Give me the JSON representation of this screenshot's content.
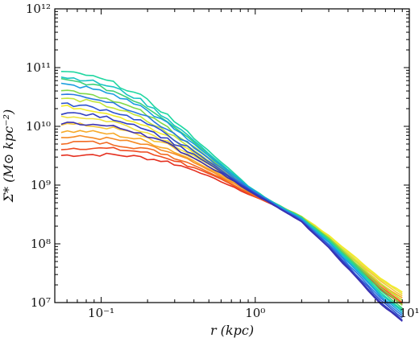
{
  "chart_data": {
    "type": "line",
    "xlabel": "r (kpc)",
    "ylabel": "Σ* (M⊙ kpc⁻²)",
    "xscale": "log",
    "yscale": "log",
    "xlim": [
      0.05,
      10
    ],
    "ylim": [
      10000000,
      1000000000000
    ],
    "grid": false,
    "legend": "none",
    "x_ticks": [
      {
        "value": 0.1,
        "label": "10⁻¹"
      },
      {
        "value": 1,
        "label": "10⁰"
      },
      {
        "value": 10,
        "label": "10¹"
      }
    ],
    "y_ticks": [
      {
        "value": 10000000,
        "label": "10⁷"
      },
      {
        "value": 100000000,
        "label": "10⁸"
      },
      {
        "value": 1000000000,
        "label": "10⁹"
      },
      {
        "value": 10000000000,
        "label": "10¹⁰"
      },
      {
        "value": 100000000000,
        "label": "10¹¹"
      },
      {
        "value": 1000000000000,
        "label": "10¹²"
      }
    ],
    "x": [
      0.055,
      0.08,
      0.12,
      0.18,
      0.27,
      0.4,
      0.6,
      0.9,
      1.3,
      2.0,
      3.0,
      4.5,
      6.5,
      9.0
    ],
    "series": [
      {
        "color": "#e53020",
        "values": [
          3200000000,
          3300000000,
          3300000000,
          3000000000,
          2500000000,
          1800000000,
          1150000000,
          700000000,
          470000000,
          260000000,
          110000000,
          40000000,
          17000000,
          9000000
        ]
      },
      {
        "color": "#ee4a20",
        "values": [
          4200000000,
          4300000000,
          4100000000,
          3700000000,
          2900000000,
          2000000000,
          1250000000,
          720000000,
          470000000,
          265000000,
          112000000,
          42000000,
          18000000,
          9500000
        ]
      },
      {
        "color": "#f26a22",
        "values": [
          5300000000,
          5400000000,
          5000000000,
          4300000000,
          3300000000,
          2200000000,
          1320000000,
          750000000,
          480000000,
          270000000,
          116000000,
          44000000,
          19000000,
          10000000
        ]
      },
      {
        "color": "#f58a25",
        "values": [
          6500000000,
          6600000000,
          6000000000,
          5000000000,
          3700000000,
          2400000000,
          1400000000,
          780000000,
          485000000,
          275000000,
          120000000,
          46000000,
          20000000,
          11000000
        ]
      },
      {
        "color": "#f7a928",
        "values": [
          8200000000,
          8200000000,
          7300000000,
          5900000000,
          4200000000,
          2600000000,
          1480000000,
          800000000,
          490000000,
          280000000,
          125000000,
          49000000,
          21000000,
          12000000
        ]
      },
      {
        "color": "#f4c73a",
        "values": [
          11000000000,
          10500000000,
          9200000000,
          7100000000,
          4800000000,
          2850000000,
          1560000000,
          820000000,
          495000000,
          285000000,
          130000000,
          52000000,
          23000000,
          13000000
        ]
      },
      {
        "color": "#eee142",
        "values": [
          15000000000,
          14000000000,
          12000000000,
          8700000000,
          5600000000,
          3150000000,
          1650000000,
          840000000,
          500000000,
          290000000,
          135000000,
          55000000,
          25000000,
          14000000
        ]
      },
      {
        "color": "#f2ec2a",
        "values": [
          22000000000,
          20000000000,
          16000000000,
          11000000000,
          6600000000,
          3500000000,
          1750000000,
          860000000,
          500000000,
          295000000,
          140000000,
          58000000,
          26000000,
          15000000
        ]
      },
      {
        "color": "#c4e53a",
        "values": [
          30000000000,
          27000000000,
          21000000000,
          14000000000,
          7900000000,
          3900000000,
          1850000000,
          880000000,
          505000000,
          290000000,
          130000000,
          50000000,
          21000000,
          11000000
        ]
      },
      {
        "color": "#7fd84a",
        "values": [
          42000000000,
          37000000000,
          28000000000,
          18000000000,
          9600000000,
          4500000000,
          2000000000,
          900000000,
          510000000,
          285000000,
          125000000,
          46000000,
          18000000,
          9000000
        ]
      },
      {
        "color": "#3ed17a",
        "values": [
          62000000000,
          54000000000,
          40000000000,
          25000000000,
          12500000000,
          5400000000,
          2250000000,
          930000000,
          510000000,
          280000000,
          120000000,
          43000000,
          16000000,
          8000000
        ]
      },
      {
        "color": "#1ed7a0",
        "values": [
          85000000000,
          75000000000,
          55000000000,
          33000000000,
          15500000000,
          6300000000,
          2500000000,
          960000000,
          510000000,
          275000000,
          115000000,
          40000000,
          15000000,
          7500000
        ]
      },
      {
        "color": "#1ac4c4",
        "values": [
          70000000000,
          62000000000,
          46000000000,
          28000000000,
          13500000000,
          5700000000,
          2300000000,
          940000000,
          505000000,
          270000000,
          110000000,
          38000000,
          14000000,
          7000000
        ]
      },
      {
        "color": "#1a9ee0",
        "values": [
          52000000000,
          46000000000,
          35000000000,
          22000000000,
          11000000000,
          5000000000,
          2150000000,
          920000000,
          500000000,
          265000000,
          105000000,
          36000000,
          13000000,
          6500000
        ]
      },
      {
        "color": "#2a78e0",
        "values": [
          36000000000,
          32000000000,
          25000000000,
          16500000000,
          8800000000,
          4300000000,
          1950000000,
          880000000,
          490000000,
          255000000,
          98000000,
          33000000,
          12000000,
          6000000
        ]
      },
      {
        "color": "#2f54d0",
        "values": [
          24000000000,
          22000000000,
          18000000000,
          12500000000,
          7200000000,
          3700000000,
          1800000000,
          850000000,
          480000000,
          245000000,
          92000000,
          30000000,
          11000000,
          5500000
        ]
      },
      {
        "color": "#2f3dc0",
        "values": [
          17000000000,
          16000000000,
          13500000000,
          10000000000,
          6000000000,
          3300000000,
          1680000000,
          830000000,
          470000000,
          240000000,
          88000000,
          28000000,
          10000000,
          5000000
        ]
      },
      {
        "color": "#3a2fb0",
        "values": [
          11500000000,
          11000000000,
          9800000000,
          7800000000,
          5000000000,
          2900000000,
          1580000000,
          810000000,
          465000000,
          235000000,
          85000000,
          27000000,
          9500000,
          4800000
        ]
      }
    ]
  }
}
